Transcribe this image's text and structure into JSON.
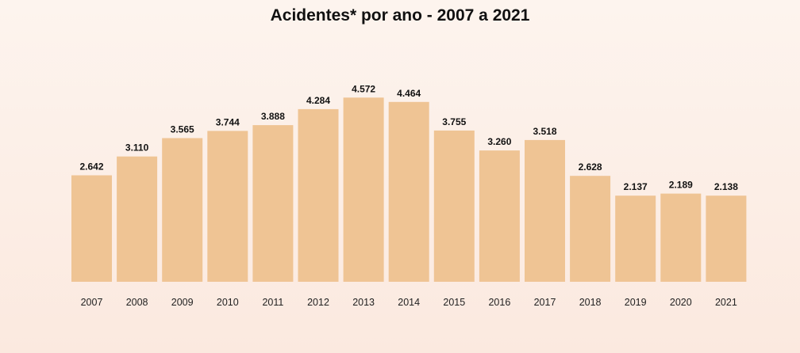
{
  "chart_data": {
    "type": "bar",
    "title": "Acidentes* por ano - 2007 a 2021",
    "categories": [
      "2007",
      "2008",
      "2009",
      "2010",
      "2011",
      "2012",
      "2013",
      "2014",
      "2015",
      "2016",
      "2017",
      "2018",
      "2019",
      "2020",
      "2021"
    ],
    "values": [
      2642,
      3110,
      3565,
      3744,
      3888,
      4284,
      4572,
      4464,
      3755,
      3260,
      3518,
      2628,
      2137,
      2189,
      2138
    ],
    "value_labels": [
      "2.642",
      "3.110",
      "3.565",
      "3.744",
      "3.888",
      "4.284",
      "4.572",
      "4.464",
      "3.755",
      "3.260",
      "3.518",
      "2.628",
      "2.137",
      "2.189",
      "2.138"
    ],
    "xlabel": "",
    "ylabel": "",
    "ylim": [
      0,
      4800
    ],
    "grid": false,
    "legend": "none",
    "bar_color": "#efc494"
  }
}
